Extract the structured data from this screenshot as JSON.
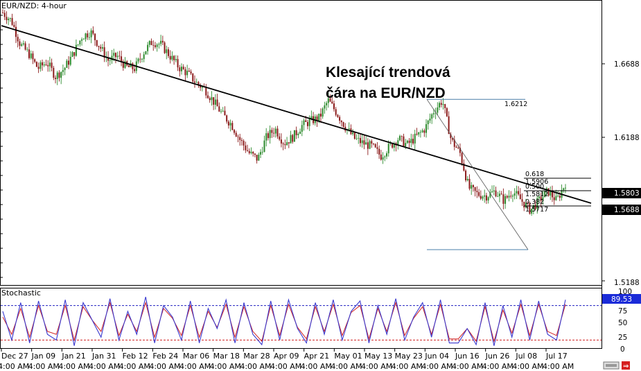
{
  "window": {
    "symbol_title": "EUR/NZD: 4-hour",
    "indicator_title": "Stochastic"
  },
  "annotation": {
    "line1": "Klesající trendová",
    "line2": "čára na EUR/NZD"
  },
  "price_axis": {
    "ticks": [
      "1.6688",
      "1.6188",
      "1.5188"
    ],
    "current_price": "1.5688",
    "trend_level": "1.5803",
    "ylim": [
      1.505,
      1.684
    ]
  },
  "stoch_axis": {
    "ticks": [
      "50",
      "25",
      "0"
    ],
    "current_value": "89.53",
    "overbought": 80,
    "oversold": 20
  },
  "fibonacci": {
    "high_label": "1.6212",
    "levels": [
      {
        "ratio": "0.618",
        "price": "1.5906"
      },
      {
        "ratio": "0.500",
        "price": "1.5812"
      },
      {
        "ratio": "0.382",
        "price": "1.5717"
      }
    ]
  },
  "time_axis": {
    "dates": [
      "Dec 27",
      "Jan 09",
      "Jan 21",
      "Jan 31",
      "Feb 12",
      "Feb 24",
      "Mar 06",
      "Mar 18",
      "Mar 28",
      "Apr 09",
      "Apr 21",
      "May 01",
      "May 13",
      "May 23",
      "Jun 04",
      "Jun 16",
      "Jun 26",
      "Jul 08",
      "Jul 17"
    ],
    "times": [
      "4:00 AM",
      "4:00 AM",
      "4:00 AM",
      "4:00 AM",
      "4:00 AM",
      "4:00 AM",
      "4:00 AM",
      "4:00 AM",
      "4:00 AM",
      "4:00 AM",
      "4:00 AM",
      "4:00 AM",
      "4:00 AM",
      "4:00 AM",
      "4:00 AM",
      "4:00 AM",
      "4:00 AM",
      "4:00 AM",
      "4:00 AM"
    ]
  },
  "colors": {
    "bull": "#2e8b2e",
    "bear": "#8b1a1a",
    "trendline": "#000000",
    "fib": "#4a7fa8",
    "stoch_main": "#3a3ad0",
    "stoch_signal": "#d02020",
    "stoch_level_ob": "#2020c0",
    "stoch_level_os": "#d02020",
    "current_price_bg": "#000000",
    "stoch_value_bg": "#1a2bd8"
  },
  "chart_data": {
    "type": "candlestick",
    "title": "EUR/NZD: 4-hour",
    "x_labels": [
      "Dec 27",
      "Jan 09",
      "Jan 21",
      "Jan 31",
      "Feb 12",
      "Feb 24",
      "Mar 06",
      "Mar 18",
      "Mar 28",
      "Apr 09",
      "Apr 21",
      "May 01",
      "May 13",
      "May 23",
      "Jun 04",
      "Jun 16",
      "Jun 26",
      "Jul 08",
      "Jul 17"
    ],
    "close_path": [
      1.676,
      1.671,
      1.656,
      1.65,
      1.641,
      1.645,
      1.636,
      1.641,
      1.65,
      1.661,
      1.664,
      1.655,
      1.646,
      1.649,
      1.642,
      1.641,
      1.651,
      1.658,
      1.656,
      1.649,
      1.642,
      1.638,
      1.632,
      1.628,
      1.62,
      1.612,
      1.606,
      1.596,
      1.588,
      1.584,
      1.598,
      1.603,
      1.594,
      1.598,
      1.605,
      1.608,
      1.61,
      1.621,
      1.613,
      1.604,
      1.597,
      1.594,
      1.592,
      1.586,
      1.592,
      1.597,
      1.593,
      1.598,
      1.603,
      1.614,
      1.621,
      1.596,
      1.588,
      1.566,
      1.562,
      1.561,
      1.564,
      1.558,
      1.564,
      1.558,
      1.552,
      1.558,
      1.564,
      1.558,
      1.569
    ],
    "trendline": {
      "from": {
        "x": "Dec 27",
        "y": 1.677
      },
      "to": {
        "x": "Jul 17",
        "y": 1.573
      }
    },
    "stochastic": {
      "main": [
        70,
        20,
        85,
        15,
        88,
        30,
        20,
        90,
        10,
        85,
        55,
        25,
        92,
        20,
        70,
        30,
        95,
        15,
        80,
        60,
        20,
        88,
        15,
        75,
        40,
        90,
        15,
        85,
        30,
        12,
        88,
        20,
        90,
        40,
        15,
        85,
        30,
        90,
        20,
        70,
        88,
        15,
        80,
        30,
        92,
        20,
        60,
        85,
        25,
        90,
        15,
        15,
        40,
        12,
        85,
        10,
        80,
        25,
        90,
        20,
        88,
        30,
        20,
        90
      ],
      "signal": [
        60,
        30,
        75,
        25,
        80,
        35,
        30,
        80,
        20,
        78,
        55,
        35,
        85,
        28,
        65,
        35,
        85,
        25,
        75,
        58,
        28,
        80,
        25,
        70,
        42,
        82,
        25,
        78,
        35,
        18,
        80,
        28,
        82,
        42,
        22,
        78,
        35,
        82,
        28,
        68,
        80,
        22,
        75,
        35,
        85,
        28,
        58,
        78,
        30,
        82,
        22,
        22,
        40,
        18,
        78,
        18,
        72,
        32,
        82,
        28,
        82,
        35,
        28,
        82
      ]
    }
  }
}
